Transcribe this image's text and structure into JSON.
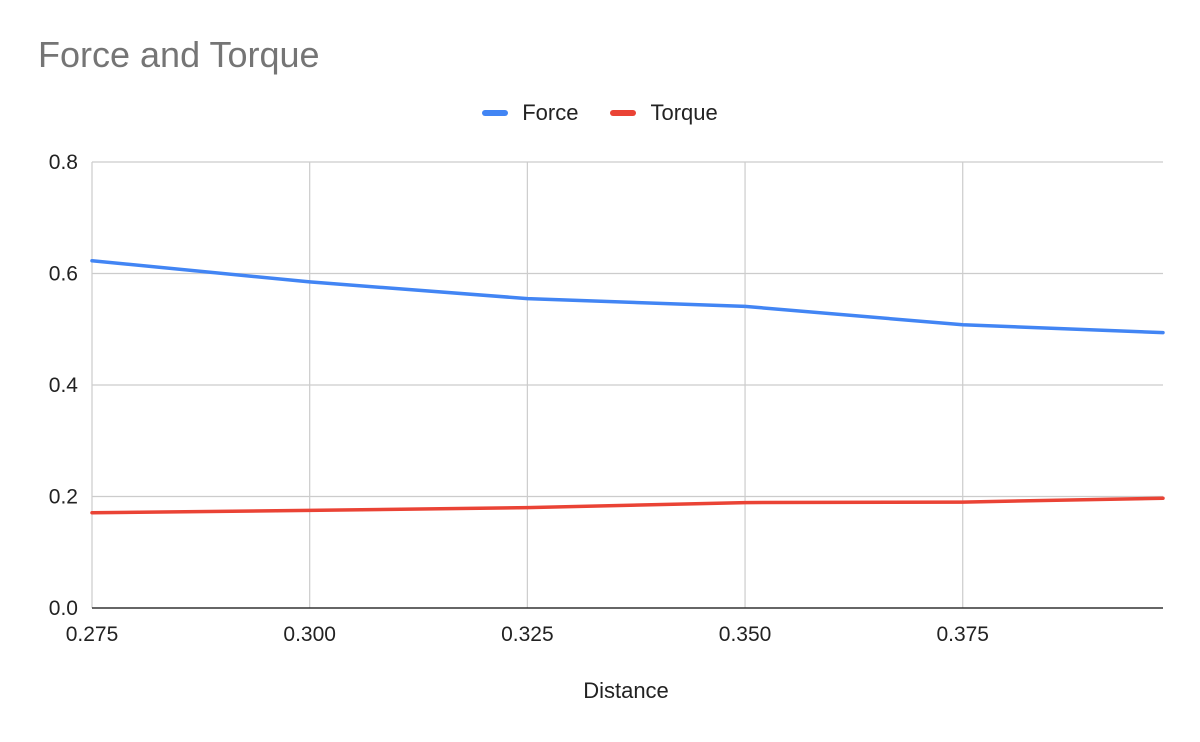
{
  "chart_data": {
    "type": "line",
    "title": "Force and Torque",
    "xlabel": "Distance",
    "ylabel": "",
    "xlim": [
      0.275,
      0.398
    ],
    "ylim": [
      0,
      0.8
    ],
    "x_ticks": [
      "0.275",
      "0.300",
      "0.325",
      "0.350",
      "0.375"
    ],
    "y_ticks": [
      "0.0",
      "0.2",
      "0.4",
      "0.6",
      "0.8"
    ],
    "grid": true,
    "legend_position": "top",
    "series": [
      {
        "name": "Force",
        "color": "#4285f4",
        "x": [
          0.275,
          0.3,
          0.325,
          0.35,
          0.375,
          0.398
        ],
        "y": [
          0.623,
          0.585,
          0.555,
          0.541,
          0.508,
          0.494
        ]
      },
      {
        "name": "Torque",
        "color": "#ea4335",
        "x": [
          0.275,
          0.3,
          0.325,
          0.35,
          0.375,
          0.398
        ],
        "y": [
          0.171,
          0.175,
          0.18,
          0.189,
          0.19,
          0.197
        ]
      }
    ]
  }
}
